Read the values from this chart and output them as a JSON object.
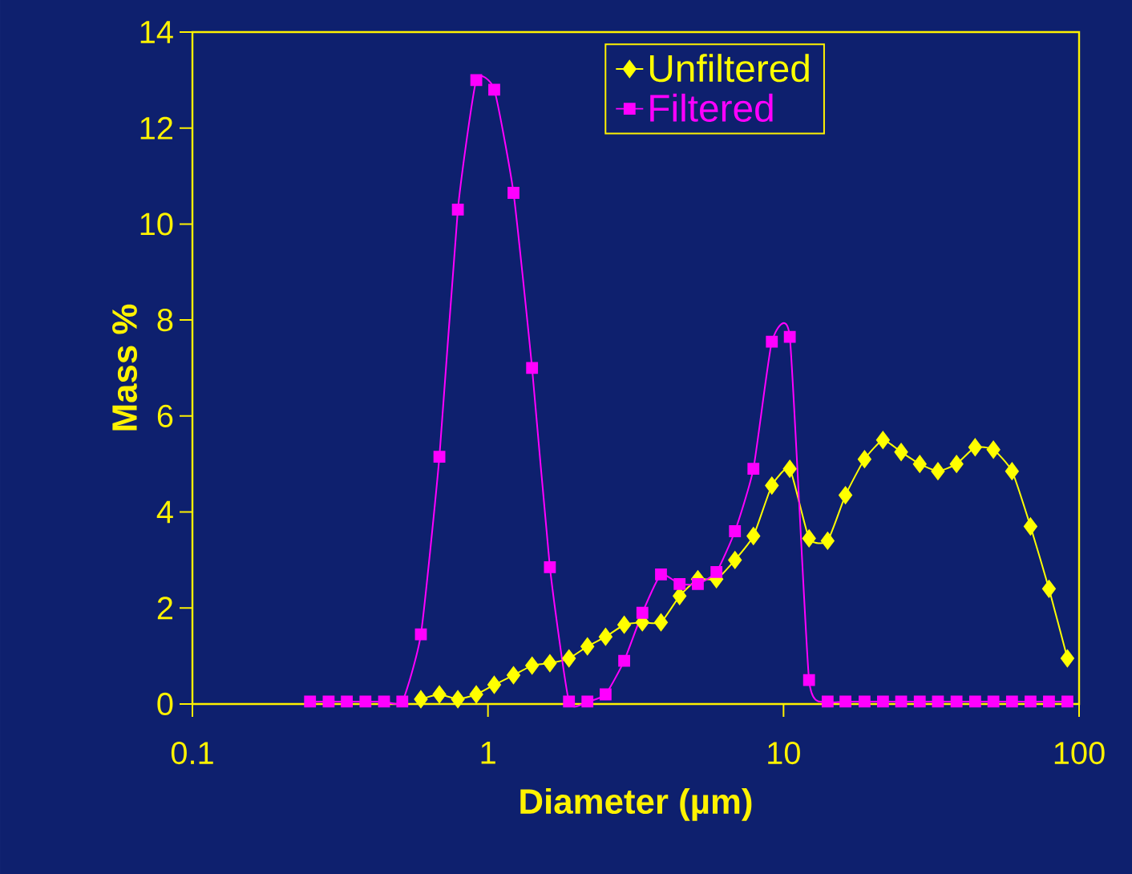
{
  "chart_data": {
    "type": "line",
    "xlabel": "Diameter (µm)",
    "ylabel": "Mass %",
    "log": "x",
    "xlim": [
      0.1,
      100
    ],
    "xticks": [
      0.1,
      1,
      10,
      100
    ],
    "ylim": [
      0,
      14
    ],
    "yticks": [
      0,
      2,
      4,
      6,
      8,
      10,
      12,
      14
    ],
    "grid": false,
    "legend": "top right",
    "line_style": "solid",
    "series": [
      {
        "name": "Unfiltered",
        "color": "#ffff00",
        "marker": "diamond",
        "x": [
          0.593,
          0.685,
          0.791,
          0.913,
          1.05,
          1.22,
          1.41,
          1.62,
          1.88,
          2.17,
          2.5,
          2.89,
          3.33,
          3.85,
          4.45,
          5.13,
          5.93,
          6.85,
          7.91,
          9.13,
          10.5,
          12.2,
          14.1,
          16.2,
          18.8,
          21.7,
          25,
          28.9,
          33.3,
          38.5,
          44.5,
          51.3,
          59.3,
          68.5,
          79.1,
          91.3
        ],
        "values": [
          0.1,
          0.2,
          0.1,
          0.2,
          0.4,
          0.6,
          0.8,
          0.85,
          0.95,
          1.2,
          1.4,
          1.65,
          1.7,
          1.7,
          2.25,
          2.6,
          2.6,
          3.0,
          3.5,
          4.55,
          4.9,
          3.45,
          3.4,
          4.35,
          5.1,
          5.5,
          5.25,
          5.0,
          4.85,
          5.0,
          5.35,
          5.3,
          4.85,
          3.7,
          2.4,
          0.95
        ]
      },
      {
        "name": "Filtered",
        "color": "#ff00ff",
        "marker": "square",
        "x": [
          0.25,
          0.289,
          0.333,
          0.385,
          0.445,
          0.513,
          0.593,
          0.685,
          0.791,
          0.913,
          1.05,
          1.22,
          1.41,
          1.62,
          1.88,
          2.17,
          2.5,
          2.89,
          3.33,
          3.85,
          4.45,
          5.13,
          5.93,
          6.85,
          7.91,
          9.13,
          10.5,
          12.2,
          14.1,
          16.2,
          18.8,
          21.7,
          25,
          28.9,
          33.3,
          38.5,
          44.5,
          51.3,
          59.3,
          68.5,
          79.1,
          91.3
        ],
        "values": [
          0.05,
          0.05,
          0.05,
          0.05,
          0.05,
          0.05,
          1.45,
          5.15,
          10.3,
          13.0,
          12.8,
          10.65,
          7.0,
          2.85,
          0.05,
          0.05,
          0.2,
          0.9,
          1.9,
          2.7,
          2.5,
          2.5,
          2.75,
          3.6,
          4.9,
          7.55,
          7.65,
          0.5,
          0.05,
          0.05,
          0.05,
          0.05,
          0.05,
          0.05,
          0.05,
          0.05,
          0.05,
          0.05,
          0.05,
          0.05,
          0.05,
          0.05
        ]
      }
    ]
  }
}
